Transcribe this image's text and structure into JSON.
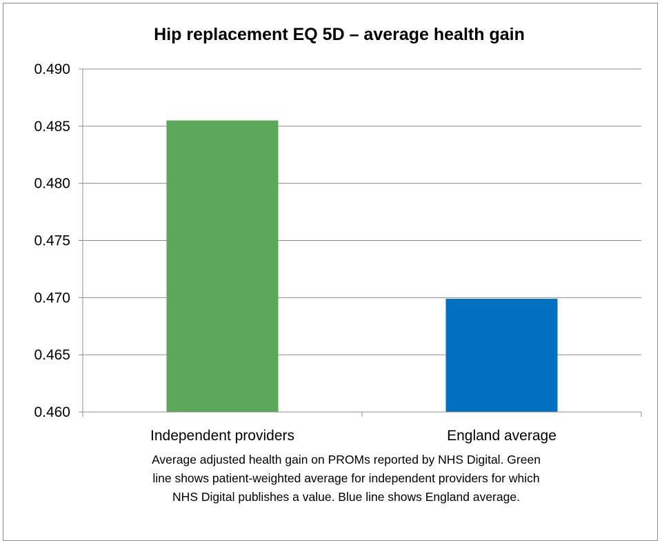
{
  "chart_data": {
    "type": "bar",
    "title": "Hip replacement EQ 5D – average health gain",
    "categories": [
      "Independent providers",
      "England average"
    ],
    "values": [
      0.4855,
      0.4699
    ],
    "colors": [
      "#5ba85a",
      "#0070c0"
    ],
    "ylim": [
      0.46,
      0.49
    ],
    "yticks": [
      "0.460",
      "0.465",
      "0.470",
      "0.475",
      "0.480",
      "0.485",
      "0.490"
    ],
    "grid": true,
    "legend": "none",
    "xlabel": "",
    "ylabel": "",
    "caption_lines": [
      "Average adjusted health gain on PROMs reported by NHS Digital. Green",
      "line shows patient-weighted average for independent providers for which",
      "NHS Digital publishes a value. Blue line shows England average."
    ]
  }
}
